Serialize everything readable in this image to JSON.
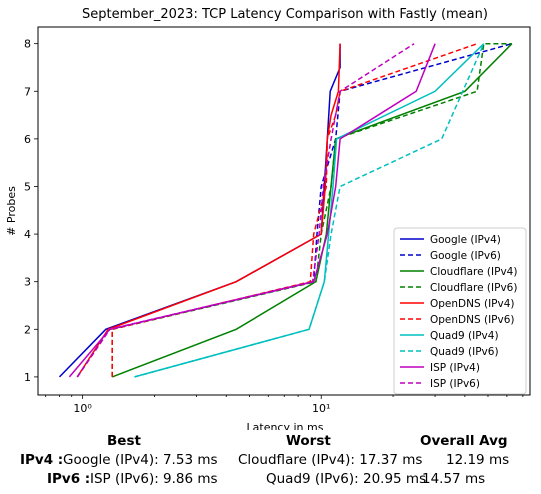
{
  "chart_data": {
    "type": "line",
    "title": "September_2023: TCP Latency Comparison with Fastly (mean)",
    "xlabel": "Latency in ms",
    "ylabel": "# Probes",
    "xscale": "log",
    "xlim": [
      0.65,
      75
    ],
    "ylim": [
      0.62,
      8.35
    ],
    "x_ticks": [
      {
        "value": 1,
        "label": "10⁰"
      },
      {
        "value": 10,
        "label": "10¹"
      }
    ],
    "y_ticks": [
      1,
      2,
      3,
      4,
      5,
      6,
      7,
      8
    ],
    "grid": false,
    "legend_position": "lower-right",
    "series": [
      {
        "name": "Google (IPv4)",
        "color": "#0000cc",
        "dash": "solid",
        "x": [
          0.8,
          1.25,
          4.4,
          10.0,
          10.6,
          10.9,
          12.0,
          12.0
        ],
        "y": [
          1,
          2,
          3,
          4,
          6,
          7,
          7.5,
          8
        ]
      },
      {
        "name": "Google (IPv6)",
        "color": "#0000cc",
        "dash": "dashed",
        "x": [
          0.95,
          1.3,
          9.3,
          9.6,
          10.0,
          11.5,
          12.0,
          63.0
        ],
        "y": [
          1,
          2,
          3,
          4,
          5,
          6,
          7,
          8
        ]
      },
      {
        "name": "Cloudflare (IPv4)",
        "color": "#008000",
        "dash": "solid",
        "x": [
          1.33,
          4.4,
          9.5,
          10.5,
          11.5,
          40.0,
          63.0
        ],
        "y": [
          1,
          2,
          3,
          4,
          6,
          7,
          8
        ]
      },
      {
        "name": "Cloudflare (IPv6)",
        "color": "#008000",
        "dash": "dashed",
        "x": [
          1.33,
          1.33,
          9.5,
          10.0,
          11.0,
          11.5,
          45.0,
          48.0,
          63.0
        ],
        "y": [
          1,
          2,
          3,
          4,
          5,
          6,
          7,
          8,
          8
        ]
      },
      {
        "name": "OpenDNS (IPv4)",
        "color": "#ff0000",
        "dash": "solid",
        "x": [
          0.95,
          1.28,
          4.4,
          10.0,
          10.4,
          10.6,
          11.0,
          11.8,
          12.0
        ],
        "y": [
          1,
          2,
          3,
          4,
          5,
          6,
          6.5,
          7,
          8
        ]
      },
      {
        "name": "OpenDNS (IPv6)",
        "color": "#ff0000",
        "dash": "dashed",
        "x": [
          1.33,
          1.33,
          9.0,
          9.3,
          10.5,
          10.6,
          11.5,
          12.0,
          45.0
        ],
        "y": [
          1,
          2,
          3,
          4,
          5,
          6,
          6.5,
          7,
          8
        ]
      },
      {
        "name": "Quad9 (IPv4)",
        "color": "#00bfbf",
        "dash": "solid",
        "x": [
          1.65,
          8.9,
          10.3,
          11.2,
          11.6,
          30.0,
          48.0
        ],
        "y": [
          1,
          2,
          3,
          5,
          6,
          7,
          8
        ]
      },
      {
        "name": "Quad9 (IPv6)",
        "color": "#00bfbf",
        "dash": "dashed",
        "x": [
          1.65,
          8.9,
          10.3,
          11.0,
          12.0,
          32.0,
          48.0
        ],
        "y": [
          1,
          2,
          3,
          4,
          5,
          6,
          8
        ]
      },
      {
        "name": "ISP (IPv4)",
        "color": "#bf00bf",
        "dash": "solid",
        "x": [
          0.88,
          1.3,
          9.3,
          10.6,
          11.5,
          12.0,
          25.0,
          30.0
        ],
        "y": [
          1,
          2,
          3,
          4,
          5,
          6,
          7,
          8
        ]
      },
      {
        "name": "ISP (IPv6)",
        "color": "#bf00bf",
        "dash": "dashed",
        "x": [
          0.95,
          1.3,
          9.2,
          9.8,
          10.2,
          11.0,
          12.0,
          24.5
        ],
        "y": [
          1,
          2,
          3,
          4,
          5,
          6,
          7,
          8
        ]
      }
    ]
  },
  "summary": {
    "headers": {
      "best": "Best",
      "worst": "Worst",
      "avg": "Overall Avg"
    },
    "rows": [
      {
        "label": "IPv4 :",
        "best": "Google (IPv4): 7.53 ms",
        "worst": "Cloudflare (IPv4): 17.37 ms",
        "avg": "12.19 ms"
      },
      {
        "label": "IPv6 :",
        "best": "ISP (IPv6): 9.86 ms",
        "worst": "Quad9 (IPv6): 20.95 ms",
        "avg": "14.57 ms"
      }
    ]
  }
}
